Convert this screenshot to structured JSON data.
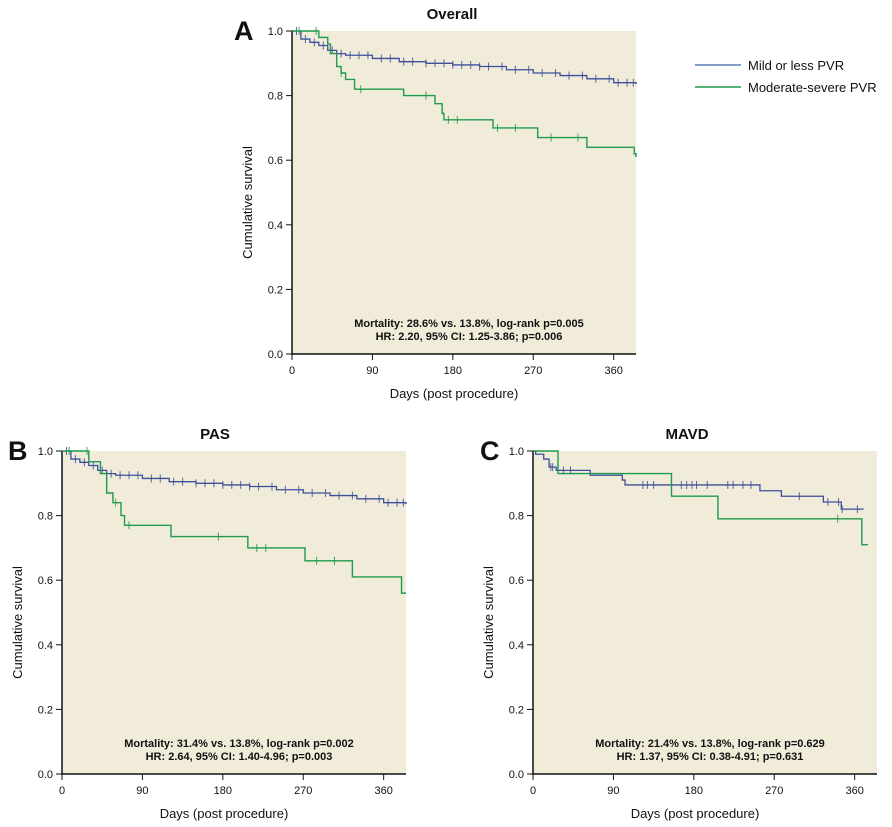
{
  "figure": {
    "legend": {
      "placement": "top-right",
      "entries": [
        {
          "label": "Mild or less PVR",
          "color": "#5b7fb8"
        },
        {
          "label": "Moderate-severe PVR",
          "color": "#1f9a4f"
        }
      ]
    },
    "colors": {
      "plot_background": "#f1ecd9",
      "mild_line": "#3c4f9a",
      "severe_line": "#1f9a4f",
      "axis": "#111111"
    }
  },
  "chart_data": [
    {
      "panel": "A",
      "type": "line",
      "subtype": "kaplan-meier",
      "title": "Overall",
      "xlabel": "Days (post procedure)",
      "ylabel": "Cumulative survival",
      "xlim": [
        0,
        385
      ],
      "ylim": [
        0,
        1.0
      ],
      "x_ticks": [
        "0",
        "90",
        "180",
        "270",
        "360"
      ],
      "y_ticks": [
        "0.0",
        "0.2",
        "0.4",
        "0.6",
        "0.8",
        "1.0"
      ],
      "annotation": [
        "Mortality: 28.6% vs. 13.8%, log-rank p=0.005",
        "HR: 2.20, 95% CI: 1.25-3.86; p=0.006"
      ],
      "series": [
        {
          "name": "Mild or less PVR",
          "x": [
            0,
            10,
            20,
            30,
            40,
            50,
            60,
            90,
            120,
            150,
            180,
            210,
            240,
            270,
            300,
            330,
            360,
            385
          ],
          "y": [
            1.0,
            0.975,
            0.965,
            0.955,
            0.94,
            0.93,
            0.925,
            0.915,
            0.905,
            0.9,
            0.895,
            0.89,
            0.88,
            0.87,
            0.862,
            0.852,
            0.84,
            0.835
          ],
          "censor_x": [
            5,
            15,
            25,
            35,
            45,
            55,
            65,
            75,
            85,
            100,
            110,
            125,
            135,
            150,
            160,
            170,
            180,
            190,
            200,
            210,
            220,
            235,
            250,
            265,
            280,
            295,
            310,
            325,
            340,
            355,
            365,
            375,
            382
          ]
        },
        {
          "name": "Moderate-severe PVR",
          "x": [
            0,
            23,
            30,
            40,
            43,
            50,
            55,
            60,
            70,
            125,
            160,
            168,
            170,
            225,
            275,
            330,
            383,
            385
          ],
          "y": [
            1.0,
            1.0,
            0.98,
            0.96,
            0.93,
            0.89,
            0.87,
            0.85,
            0.82,
            0.8,
            0.775,
            0.745,
            0.725,
            0.7,
            0.67,
            0.64,
            0.62,
            0.61
          ],
          "censor_x": [
            8,
            27,
            55,
            77,
            150,
            175,
            185,
            230,
            250,
            290,
            320
          ]
        }
      ]
    },
    {
      "panel": "B",
      "type": "line",
      "subtype": "kaplan-meier",
      "title": "PAS",
      "xlabel": "Days (post procedure)",
      "ylabel": "Cumulative survival",
      "xlim": [
        0,
        385
      ],
      "ylim": [
        0,
        1.0
      ],
      "x_ticks": [
        "0",
        "90",
        "180",
        "270",
        "360"
      ],
      "y_ticks": [
        "0.0",
        "0.2",
        "0.4",
        "0.6",
        "0.8",
        "1.0"
      ],
      "annotation": [
        "Mortality: 31.4% vs. 13.8%, log-rank p=0.002",
        "HR: 2.64, 95% CI: 1.40-4.96; p=0.003"
      ],
      "series": [
        {
          "name": "Mild or less PVR",
          "x": [
            0,
            10,
            20,
            30,
            40,
            50,
            60,
            90,
            120,
            150,
            180,
            210,
            240,
            270,
            300,
            330,
            360,
            385
          ],
          "y": [
            1.0,
            0.975,
            0.965,
            0.955,
            0.94,
            0.93,
            0.925,
            0.915,
            0.905,
            0.9,
            0.895,
            0.89,
            0.88,
            0.87,
            0.862,
            0.852,
            0.84,
            0.835
          ],
          "censor_x": [
            5,
            15,
            25,
            35,
            45,
            55,
            65,
            75,
            85,
            100,
            110,
            125,
            135,
            150,
            160,
            170,
            180,
            190,
            200,
            210,
            220,
            235,
            250,
            265,
            280,
            295,
            310,
            325,
            340,
            355,
            365,
            375,
            382
          ]
        },
        {
          "name": "Moderate-severe PVR",
          "x": [
            0,
            20,
            30,
            40,
            43,
            50,
            57,
            66,
            70,
            122,
            208,
            272,
            325,
            380,
            385
          ],
          "y": [
            1.0,
            1.0,
            0.967,
            0.967,
            0.93,
            0.87,
            0.84,
            0.8,
            0.77,
            0.735,
            0.7,
            0.66,
            0.61,
            0.56,
            0.56
          ],
          "censor_x": [
            8,
            28,
            60,
            75,
            175,
            218,
            228,
            285,
            305
          ]
        }
      ]
    },
    {
      "panel": "C",
      "type": "line",
      "subtype": "kaplan-meier",
      "title": "MAVD",
      "xlabel": "Days (post procedure)",
      "ylabel": "Cumulative survival",
      "xlim": [
        0,
        385
      ],
      "ylim": [
        0,
        1.0
      ],
      "x_ticks": [
        "0",
        "90",
        "180",
        "270",
        "360"
      ],
      "y_ticks": [
        "0.0",
        "0.2",
        "0.4",
        "0.6",
        "0.8",
        "1.0"
      ],
      "annotation": [
        "Mortality: 21.4% vs. 13.8%, log-rank p=0.629",
        "HR: 1.37, 95% CI: 0.38-4.91; p=0.631"
      ],
      "series": [
        {
          "name": "Mild or less PVR",
          "x": [
            0,
            3,
            12,
            18,
            26,
            64,
            100,
            103,
            254,
            278,
            325,
            345,
            370
          ],
          "y": [
            1.0,
            0.99,
            0.975,
            0.95,
            0.94,
            0.925,
            0.91,
            0.895,
            0.877,
            0.86,
            0.842,
            0.82,
            0.82
          ],
          "censor_x": [
            20,
            22,
            34,
            42,
            123,
            128,
            135,
            166,
            172,
            178,
            183,
            195,
            218,
            224,
            235,
            244,
            298,
            330,
            342,
            346,
            363
          ]
        },
        {
          "name": "Moderate-severe PVR",
          "x": [
            0,
            28,
            155,
            207,
            368,
            375
          ],
          "y": [
            1.0,
            0.93,
            0.86,
            0.79,
            0.71,
            0.71
          ],
          "censor_x": [
            341
          ]
        }
      ]
    }
  ]
}
